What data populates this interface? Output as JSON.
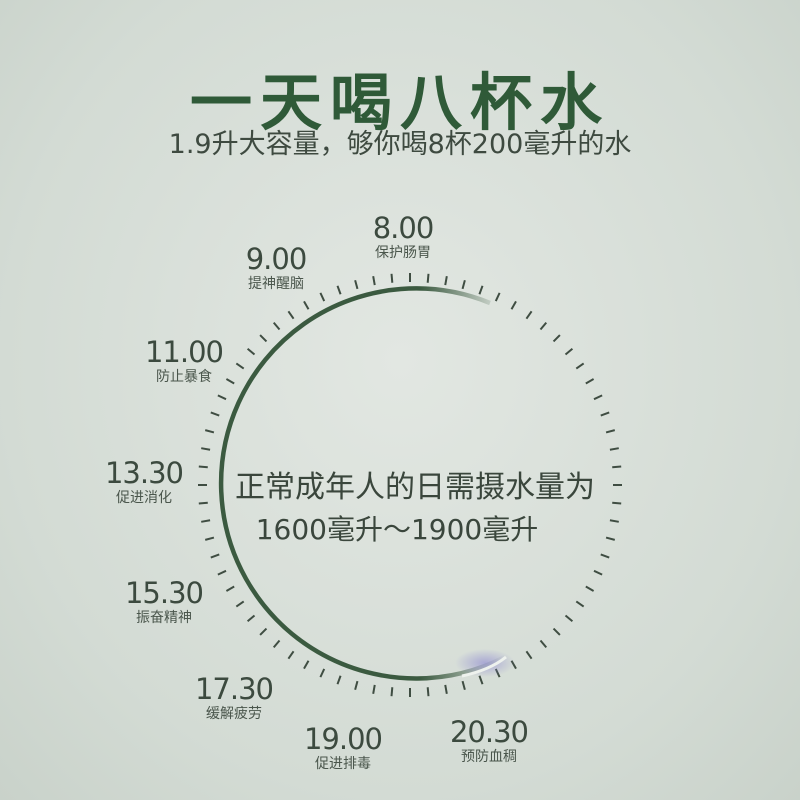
{
  "title": "一天喝八杯水",
  "subtitle": "1.9升大容量，够你喝8杯200毫升的水",
  "center_text": {
    "line1": "正常成年人的日需摄水量为",
    "line2": "1600毫升～1900毫升"
  },
  "schedule": [
    {
      "time": "8.00",
      "desc": "保护肠胃"
    },
    {
      "time": "9.00",
      "desc": "提神醒脑"
    },
    {
      "time": "11.00",
      "desc": "防止暴食"
    },
    {
      "time": "13.30",
      "desc": "促进消化"
    },
    {
      "time": "15.30",
      "desc": "振奋精神"
    },
    {
      "time": "17.30",
      "desc": "缓解疲劳"
    },
    {
      "time": "19.00",
      "desc": "促进排毒"
    },
    {
      "time": "20.30",
      "desc": "预防血稠"
    }
  ],
  "colors": {
    "accent": "#2f5a38",
    "arc": "#3b5a40"
  }
}
